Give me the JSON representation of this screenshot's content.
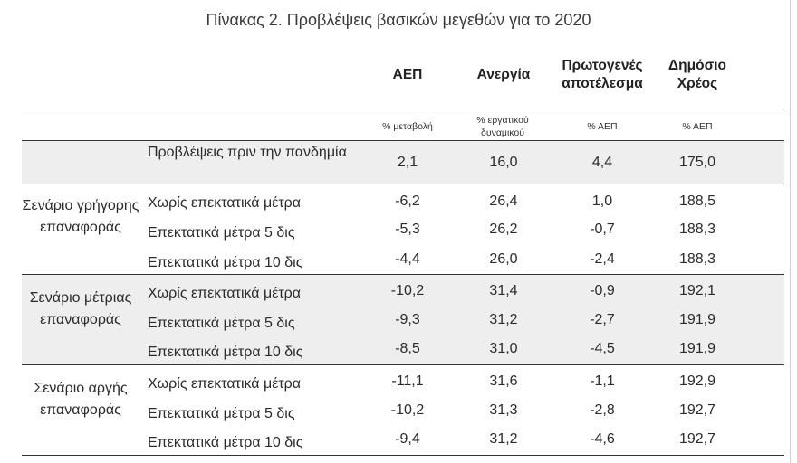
{
  "title": "Πίνακας 2. Προβλέψεις βασικών μεγεθών για το 2020",
  "columns": [
    {
      "header": "ΑΕΠ",
      "unit": "% μεταβολή"
    },
    {
      "header": "Ανεργία",
      "unit": "% εργατικού δυναμικού"
    },
    {
      "header": "Πρωτογενές αποτέλεσμα",
      "unit": "% ΑΕΠ"
    },
    {
      "header": "Δημόσιο Χρέος",
      "unit": "% ΑΕΠ"
    }
  ],
  "baseline": {
    "label": "Προβλέψεις πριν την πανδημία",
    "values": [
      "2,1",
      "16,0",
      "4,4",
      "175,0"
    ]
  },
  "groups": [
    {
      "label": "Σενάριο γρήγορης επαναφοράς",
      "rows": [
        {
          "label": "Χωρίς επεκτατικά μέτρα",
          "values": [
            "-6,2",
            "26,4",
            "1,0",
            "188,5"
          ]
        },
        {
          "label": "Επεκτατικά μέτρα 5 δις",
          "values": [
            "-5,3",
            "26,2",
            "-0,7",
            "188,3"
          ]
        },
        {
          "label": "Επεκτατικά μέτρα 10 δις",
          "values": [
            "-4,4",
            "26,0",
            "-2,4",
            "188,3"
          ]
        }
      ]
    },
    {
      "label": "Σενάριο μέτριας επαναφοράς",
      "rows": [
        {
          "label": "Χωρίς επεκτατικά μέτρα",
          "values": [
            "-10,2",
            "31,4",
            "-0,9",
            "192,1"
          ]
        },
        {
          "label": "Επεκτατικά μέτρα 5 δις",
          "values": [
            "-9,3",
            "31,2",
            "-2,7",
            "191,9"
          ]
        },
        {
          "label": "Επεκτατικά μέτρα 10 δις",
          "values": [
            "-8,5",
            "31,0",
            "-4,5",
            "191,9"
          ]
        }
      ]
    },
    {
      "label": "Σενάριο αργής επαναφοράς",
      "rows": [
        {
          "label": "Χωρίς επεκτατικά μέτρα",
          "values": [
            "-11,1",
            "31,6",
            "-1,1",
            "192,9"
          ]
        },
        {
          "label": "Επεκτατικά μέτρα 5 δις",
          "values": [
            "-10,2",
            "31,3",
            "-2,8",
            "192,7"
          ]
        },
        {
          "label": "Επεκτατικά μέτρα 10 δις",
          "values": [
            "-9,4",
            "31,2",
            "-4,6",
            "192,7"
          ]
        }
      ]
    }
  ]
}
